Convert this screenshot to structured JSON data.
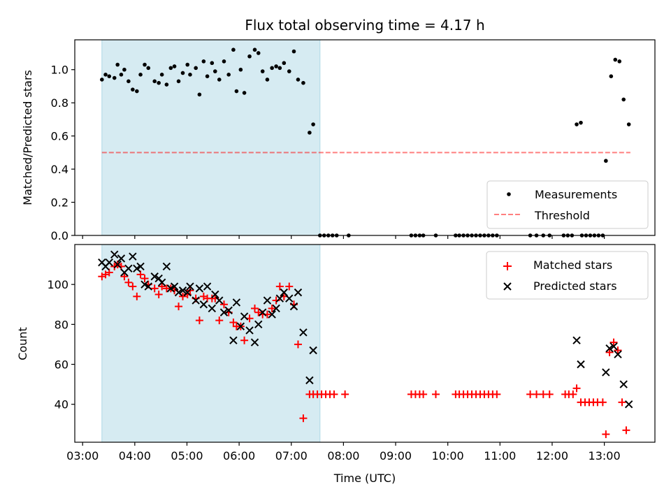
{
  "chart_data": [
    {
      "id": "ratio",
      "type": "scatter",
      "title": "Flux total observing time = 4.17 h",
      "xlabel": "",
      "ylabel": "Matched/Predicted stars",
      "xlim": [
        2.85,
        13.97
      ],
      "ylim": [
        0.0,
        1.18
      ],
      "yticks": [
        0.0,
        0.2,
        0.4,
        0.6,
        0.8,
        1.0
      ],
      "ytick_labels": [
        "0.0",
        "0.2",
        "0.4",
        "0.6",
        "0.8",
        "1.0"
      ],
      "xticks": [
        3,
        4,
        5,
        6,
        7,
        8,
        9,
        10,
        11,
        12,
        13
      ],
      "show_xtick_labels": false,
      "shaded_span": [
        3.37,
        7.55
      ],
      "threshold": {
        "value": 0.5,
        "x_range": [
          3.37,
          13.5
        ]
      },
      "legend": {
        "position": "lower right",
        "entries": [
          "Measurements",
          "Threshold"
        ]
      },
      "series": [
        {
          "name": "Measurements",
          "points": [
            [
              3.37,
              0.94
            ],
            [
              3.44,
              0.97
            ],
            [
              3.51,
              0.96
            ],
            [
              3.61,
              0.95
            ],
            [
              3.67,
              1.03
            ],
            [
              3.74,
              0.97
            ],
            [
              3.8,
              1.0
            ],
            [
              3.88,
              0.93
            ],
            [
              3.96,
              0.88
            ],
            [
              4.04,
              0.87
            ],
            [
              4.11,
              0.97
            ],
            [
              4.19,
              1.03
            ],
            [
              4.26,
              1.01
            ],
            [
              4.38,
              0.93
            ],
            [
              4.46,
              0.92
            ],
            [
              4.52,
              0.97
            ],
            [
              4.61,
              0.91
            ],
            [
              4.69,
              1.01
            ],
            [
              4.76,
              1.02
            ],
            [
              4.84,
              0.93
            ],
            [
              4.92,
              0.98
            ],
            [
              5.01,
              1.03
            ],
            [
              5.06,
              0.97
            ],
            [
              5.17,
              1.01
            ],
            [
              5.24,
              0.85
            ],
            [
              5.32,
              1.05
            ],
            [
              5.39,
              0.96
            ],
            [
              5.48,
              1.04
            ],
            [
              5.54,
              0.99
            ],
            [
              5.62,
              0.94
            ],
            [
              5.71,
              1.05
            ],
            [
              5.8,
              0.97
            ],
            [
              5.89,
              1.12
            ],
            [
              5.95,
              0.87
            ],
            [
              6.03,
              1.0
            ],
            [
              6.1,
              0.86
            ],
            [
              6.2,
              1.08
            ],
            [
              6.3,
              1.12
            ],
            [
              6.37,
              1.1
            ],
            [
              6.45,
              0.99
            ],
            [
              6.54,
              0.94
            ],
            [
              6.63,
              1.01
            ],
            [
              6.71,
              1.02
            ],
            [
              6.78,
              1.01
            ],
            [
              6.86,
              1.04
            ],
            [
              6.96,
              0.99
            ],
            [
              7.05,
              1.11
            ],
            [
              7.13,
              0.94
            ],
            [
              7.23,
              0.92
            ],
            [
              7.35,
              0.62
            ],
            [
              7.42,
              0.67
            ],
            [
              7.55,
              0.0
            ],
            [
              7.63,
              0.0
            ],
            [
              7.71,
              0.0
            ],
            [
              7.79,
              0.0
            ],
            [
              7.87,
              0.0
            ],
            [
              8.1,
              0.0
            ],
            [
              9.3,
              0.0
            ],
            [
              9.38,
              0.0
            ],
            [
              9.46,
              0.0
            ],
            [
              9.53,
              0.0
            ],
            [
              9.77,
              0.0
            ],
            [
              10.15,
              0.0
            ],
            [
              10.22,
              0.0
            ],
            [
              10.3,
              0.0
            ],
            [
              10.38,
              0.0
            ],
            [
              10.46,
              0.0
            ],
            [
              10.54,
              0.0
            ],
            [
              10.62,
              0.0
            ],
            [
              10.7,
              0.0
            ],
            [
              10.78,
              0.0
            ],
            [
              10.86,
              0.0
            ],
            [
              10.94,
              0.0
            ],
            [
              11.58,
              0.0
            ],
            [
              11.7,
              0.0
            ],
            [
              11.83,
              0.0
            ],
            [
              11.95,
              0.0
            ],
            [
              12.22,
              0.0
            ],
            [
              12.3,
              0.0
            ],
            [
              12.38,
              0.0
            ],
            [
              12.57,
              0.0
            ],
            [
              12.65,
              0.0
            ],
            [
              12.73,
              0.0
            ],
            [
              12.81,
              0.0
            ],
            [
              12.89,
              0.0
            ],
            [
              12.97,
              0.0
            ],
            [
              12.47,
              0.67
            ],
            [
              12.55,
              0.68
            ],
            [
              13.03,
              0.45
            ],
            [
              13.13,
              0.96
            ],
            [
              13.21,
              1.06
            ],
            [
              13.29,
              1.05
            ],
            [
              13.37,
              0.82
            ],
            [
              13.47,
              0.67
            ]
          ]
        }
      ]
    },
    {
      "id": "counts",
      "type": "scatter",
      "title": "",
      "xlabel": "Time (UTC)",
      "ylabel": "Count",
      "xlim": [
        2.85,
        13.97
      ],
      "ylim": [
        21,
        120
      ],
      "yticks": [
        40,
        60,
        80,
        100
      ],
      "ytick_labels": [
        "40",
        "60",
        "80",
        "100"
      ],
      "xticks": [
        3,
        4,
        5,
        6,
        7,
        8,
        9,
        10,
        11,
        12,
        13
      ],
      "xtick_labels": [
        "03:00",
        "04:00",
        "05:00",
        "06:00",
        "07:00",
        "08:00",
        "09:00",
        "10:00",
        "11:00",
        "12:00",
        "13:00"
      ],
      "shaded_span": [
        3.37,
        7.55
      ],
      "legend": {
        "position": "upper right",
        "entries": [
          "Matched stars",
          "Predicted stars"
        ]
      },
      "series": [
        {
          "name": "Matched stars",
          "color": "#ff0000",
          "marker": "+",
          "points": [
            [
              3.37,
              104
            ],
            [
              3.44,
              105
            ],
            [
              3.51,
              106
            ],
            [
              3.61,
              109
            ],
            [
              3.67,
              110
            ],
            [
              3.74,
              109
            ],
            [
              3.8,
              104
            ],
            [
              3.88,
              101
            ],
            [
              3.96,
              99
            ],
            [
              4.04,
              94
            ],
            [
              4.11,
              105
            ],
            [
              4.19,
              103
            ],
            [
              4.26,
              100
            ],
            [
              4.38,
              98
            ],
            [
              4.46,
              95
            ],
            [
              4.52,
              99
            ],
            [
              4.61,
              98
            ],
            [
              4.69,
              98
            ],
            [
              4.76,
              97
            ],
            [
              4.84,
              89
            ],
            [
              4.92,
              94
            ],
            [
              5.01,
              95
            ],
            [
              5.06,
              97
            ],
            [
              5.17,
              93
            ],
            [
              5.24,
              82
            ],
            [
              5.32,
              94
            ],
            [
              5.39,
              93
            ],
            [
              5.48,
              93
            ],
            [
              5.54,
              93
            ],
            [
              5.62,
              82
            ],
            [
              5.71,
              90
            ],
            [
              5.8,
              86
            ],
            [
              5.89,
              81
            ],
            [
              5.95,
              79
            ],
            [
              6.03,
              79
            ],
            [
              6.1,
              72
            ],
            [
              6.2,
              83
            ],
            [
              6.3,
              88
            ],
            [
              6.37,
              86
            ],
            [
              6.45,
              85
            ],
            [
              6.54,
              85
            ],
            [
              6.63,
              88
            ],
            [
              6.71,
              92
            ],
            [
              6.78,
              99
            ],
            [
              6.86,
              94
            ],
            [
              6.96,
              99
            ],
            [
              7.05,
              90
            ],
            [
              7.13,
              70
            ],
            [
              7.23,
              33
            ],
            [
              7.35,
              45
            ],
            [
              7.42,
              45
            ],
            [
              7.5,
              45
            ],
            [
              7.58,
              45
            ],
            [
              7.66,
              45
            ],
            [
              7.74,
              45
            ],
            [
              7.82,
              45
            ],
            [
              8.03,
              45
            ],
            [
              9.3,
              45
            ],
            [
              9.38,
              45
            ],
            [
              9.46,
              45
            ],
            [
              9.53,
              45
            ],
            [
              9.77,
              45
            ],
            [
              10.15,
              45
            ],
            [
              10.22,
              45
            ],
            [
              10.3,
              45
            ],
            [
              10.38,
              45
            ],
            [
              10.46,
              45
            ],
            [
              10.54,
              45
            ],
            [
              10.62,
              45
            ],
            [
              10.7,
              45
            ],
            [
              10.78,
              45
            ],
            [
              10.86,
              45
            ],
            [
              10.94,
              45
            ],
            [
              11.58,
              45
            ],
            [
              11.7,
              45
            ],
            [
              11.83,
              45
            ],
            [
              11.95,
              45
            ],
            [
              12.25,
              45
            ],
            [
              12.32,
              45
            ],
            [
              12.4,
              45
            ],
            [
              12.47,
              48
            ],
            [
              12.55,
              41
            ],
            [
              12.63,
              41
            ],
            [
              12.71,
              41
            ],
            [
              12.79,
              41
            ],
            [
              12.87,
              41
            ],
            [
              12.97,
              41
            ],
            [
              13.03,
              25
            ],
            [
              13.1,
              66
            ],
            [
              13.18,
              71
            ],
            [
              13.26,
              67
            ],
            [
              13.34,
              41
            ],
            [
              13.42,
              27
            ]
          ]
        },
        {
          "name": "Predicted stars",
          "color": "#000000",
          "marker": "x",
          "points": [
            [
              3.37,
              111
            ],
            [
              3.44,
              109
            ],
            [
              3.51,
              111
            ],
            [
              3.61,
              115
            ],
            [
              3.67,
              110
            ],
            [
              3.74,
              113
            ],
            [
              3.8,
              106
            ],
            [
              3.88,
              108
            ],
            [
              3.96,
              114
            ],
            [
              4.04,
              108
            ],
            [
              4.11,
              109
            ],
            [
              4.19,
              100
            ],
            [
              4.26,
              99
            ],
            [
              4.38,
              104
            ],
            [
              4.46,
              103
            ],
            [
              4.52,
              101
            ],
            [
              4.61,
              109
            ],
            [
              4.69,
              98
            ],
            [
              4.76,
              99
            ],
            [
              4.84,
              96
            ],
            [
              4.92,
              97
            ],
            [
              5.01,
              96
            ],
            [
              5.06,
              99
            ],
            [
              5.17,
              92
            ],
            [
              5.24,
              98
            ],
            [
              5.32,
              90
            ],
            [
              5.39,
              99
            ],
            [
              5.48,
              88
            ],
            [
              5.54,
              95
            ],
            [
              5.62,
              92
            ],
            [
              5.71,
              86
            ],
            [
              5.8,
              87
            ],
            [
              5.89,
              72
            ],
            [
              5.95,
              91
            ],
            [
              6.03,
              79
            ],
            [
              6.1,
              84
            ],
            [
              6.2,
              77
            ],
            [
              6.3,
              71
            ],
            [
              6.37,
              80
            ],
            [
              6.45,
              86
            ],
            [
              6.54,
              92
            ],
            [
              6.63,
              85
            ],
            [
              6.71,
              88
            ],
            [
              6.78,
              93
            ],
            [
              6.86,
              96
            ],
            [
              6.96,
              93
            ],
            [
              7.05,
              89
            ],
            [
              7.13,
              96
            ],
            [
              7.23,
              76
            ],
            [
              7.35,
              52
            ],
            [
              7.42,
              67
            ],
            [
              12.47,
              72
            ],
            [
              12.55,
              60
            ],
            [
              13.03,
              56
            ],
            [
              13.1,
              68
            ],
            [
              13.18,
              69
            ],
            [
              13.26,
              65
            ],
            [
              13.37,
              50
            ],
            [
              13.47,
              40
            ]
          ]
        }
      ]
    }
  ]
}
